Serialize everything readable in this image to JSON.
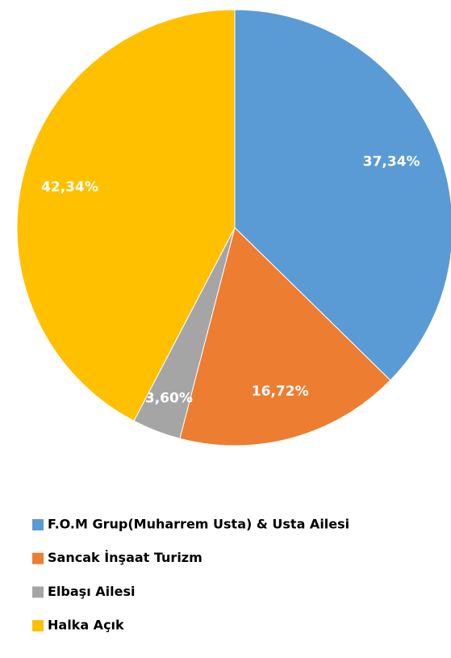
{
  "chart_data": {
    "type": "pie",
    "categories": [
      "F.O.M Grup(Muharrem Usta)  & Usta Ailesi",
      "Sancak İnşaat Turizm",
      "Elbaşı Ailesi",
      "Halka Açık"
    ],
    "values": [
      37.34,
      16.72,
      3.6,
      42.34
    ],
    "value_labels": [
      "37,34%",
      "16,72%",
      "3,60%",
      "42,34%"
    ],
    "colors": [
      "#5b9bd5",
      "#ed7d31",
      "#a5a5a5",
      "#ffc000"
    ],
    "legend": "bottom"
  }
}
